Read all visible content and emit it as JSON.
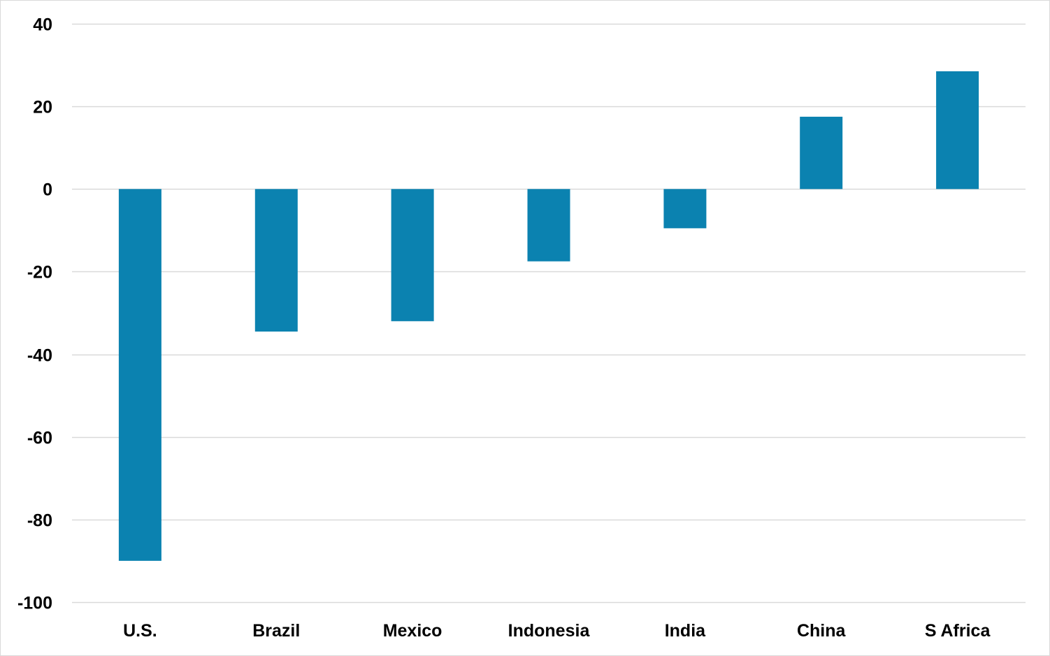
{
  "chart_data": {
    "type": "bar",
    "title": "",
    "xlabel": "",
    "ylabel": "",
    "categories": [
      "U.S.",
      "Brazil",
      "Mexico",
      "Indonesia",
      "India",
      "China",
      "S Africa"
    ],
    "values": [
      -90,
      -34.5,
      -32,
      -17.5,
      -9.5,
      17.5,
      28.5
    ],
    "ylim": [
      -100,
      40
    ],
    "yticks": [
      40,
      20,
      0,
      -20,
      -40,
      -60,
      -80,
      -100
    ],
    "ytick_labels": [
      "40",
      "20",
      "0",
      "-20",
      "-40",
      "-60",
      "-80",
      "-100"
    ],
    "grid": true,
    "legend": "none",
    "colors": {
      "bar": "#0b82b0",
      "grid": "#d9d9d9",
      "zero_line": "#d9d9d9",
      "text": "#000000"
    }
  }
}
